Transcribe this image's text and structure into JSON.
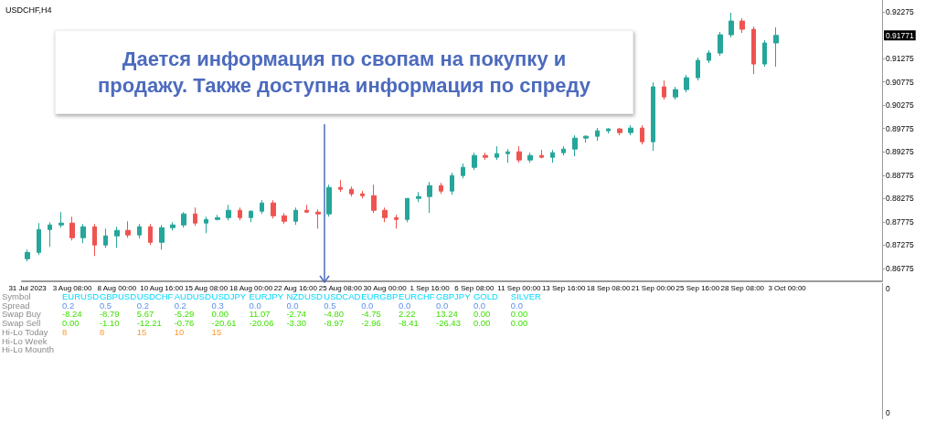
{
  "chart_data": [
    {
      "type": "candlestick",
      "title": "USDCHF,H4",
      "annotations": [
        "Дается информация по свопам на покупку и продажу. Также доступна информация по спреду",
        {
          "text": "0.91771",
          "y": 0.91771
        }
      ],
      "categories": [
        "31 Jul 2023",
        null,
        null,
        null,
        "3 Aug 08:00",
        null,
        null,
        null,
        "8 Aug 00:00",
        null,
        null,
        null,
        "10 Aug 16:00",
        null,
        null,
        null,
        "15 Aug 08:00",
        null,
        null,
        null,
        "18 Aug 00:00",
        null,
        null,
        null,
        "22 Aug 16:00",
        null,
        null,
        null,
        "25 Aug 08:00",
        null,
        null,
        null,
        "30 Aug 00:00",
        null,
        null,
        null,
        "1 Sep 16:00",
        null,
        null,
        null,
        "6 Sep 08:00",
        null,
        null,
        null,
        "11 Sep 00:00",
        null,
        null,
        null,
        "13 Sep 16:00",
        null,
        null,
        null,
        "18 Sep 08:00",
        null,
        null,
        null,
        "21 Sep 00:00",
        null,
        null,
        null,
        "25 Sep 16:00",
        null,
        null,
        null,
        "28 Sep 08:00",
        null,
        null,
        null,
        "3 Oct 00:00",
        null,
        null,
        null,
        null,
        null,
        null,
        null,
        null
      ],
      "ohlc": [
        [
          0.86983,
          0.87179,
          0.86924,
          0.8712
        ],
        [
          0.8712,
          0.87748,
          0.87062,
          0.8761
        ],
        [
          0.8761,
          0.87767,
          0.87238,
          0.87708
        ],
        [
          0.87708,
          0.87983,
          0.8765,
          0.87748
        ],
        [
          0.87748,
          0.87885,
          0.87375,
          0.87434
        ],
        [
          0.87434,
          0.87728,
          0.87316,
          0.87669
        ],
        [
          0.87669,
          0.87728,
          0.87042,
          0.87277
        ],
        [
          0.87277,
          0.8763,
          0.87218,
          0.87473
        ],
        [
          0.87473,
          0.87669,
          0.87218,
          0.87591
        ],
        [
          0.87591,
          0.87787,
          0.87434,
          0.87493
        ],
        [
          0.87493,
          0.87728,
          0.87414,
          0.87669
        ],
        [
          0.87669,
          0.87728,
          0.87277,
          0.87336
        ],
        [
          0.87336,
          0.87708,
          0.87179,
          0.8765
        ],
        [
          0.8765,
          0.87767,
          0.87591,
          0.87708
        ],
        [
          0.87708,
          0.87983,
          0.8765,
          0.87944
        ],
        [
          0.87944,
          0.88081,
          0.87689,
          0.87748
        ],
        [
          0.87748,
          0.87885,
          0.87532,
          0.87826
        ],
        [
          0.87826,
          0.87924,
          0.87806,
          0.87865
        ],
        [
          0.87865,
          0.8814,
          0.87806,
          0.88022
        ],
        [
          0.88022,
          0.88081,
          0.87806,
          0.87865
        ],
        [
          0.87865,
          0.88022,
          0.87767,
          0.88002
        ],
        [
          0.88002,
          0.88238,
          0.87944,
          0.88179
        ],
        [
          0.88179,
          0.88238,
          0.87846,
          0.87904
        ],
        [
          0.87904,
          0.87963,
          0.87728,
          0.87787
        ],
        [
          0.87787,
          0.88081,
          0.87708,
          0.88022
        ],
        [
          0.88022,
          0.8814,
          0.87963,
          0.87983
        ],
        [
          0.87983,
          0.88042,
          0.8763,
          0.87944
        ],
        [
          0.87944,
          0.88571,
          0.87885,
          0.88512
        ],
        [
          0.88512,
          0.88669,
          0.88414,
          0.88473
        ],
        [
          0.88473,
          0.88532,
          0.88316,
          0.88375
        ],
        [
          0.88375,
          0.88434,
          0.88277,
          0.88336
        ],
        [
          0.88336,
          0.88571,
          0.87963,
          0.88022
        ],
        [
          0.88022,
          0.88081,
          0.87767,
          0.87865
        ],
        [
          0.87865,
          0.87924,
          0.8763,
          0.87826
        ],
        [
          0.87826,
          0.88277,
          0.87767,
          0.88277
        ],
        [
          0.88277,
          0.88414,
          0.88198,
          0.88317
        ],
        [
          0.88317,
          0.8863,
          0.87963,
          0.88551
        ],
        [
          0.88551,
          0.8861,
          0.88375,
          0.88434
        ],
        [
          0.88434,
          0.88826,
          0.88355,
          0.88767
        ],
        [
          0.88767,
          0.89022,
          0.88708,
          0.88943
        ],
        [
          0.88943,
          0.89257,
          0.88884,
          0.89198
        ],
        [
          0.89198,
          0.89257,
          0.891,
          0.89159
        ],
        [
          0.89159,
          0.89394,
          0.891,
          0.89237
        ],
        [
          0.89237,
          0.89335,
          0.89041,
          0.89276
        ],
        [
          0.89276,
          0.89394,
          0.89041,
          0.891
        ],
        [
          0.891,
          0.89257,
          0.89041,
          0.89198
        ],
        [
          0.89198,
          0.89316,
          0.89139,
          0.89158
        ],
        [
          0.89158,
          0.89316,
          0.89041,
          0.89257
        ],
        [
          0.89257,
          0.89394,
          0.89198,
          0.89335
        ],
        [
          0.89335,
          0.89629,
          0.89178,
          0.8957
        ],
        [
          0.8957,
          0.89629,
          0.89472,
          0.8961
        ],
        [
          0.8961,
          0.89786,
          0.89512,
          0.89727
        ],
        [
          0.89727,
          0.89786,
          0.89668,
          0.89767
        ],
        [
          0.89767,
          0.89786,
          0.89629,
          0.89688
        ],
        [
          0.89688,
          0.89845,
          0.89629,
          0.89786
        ],
        [
          0.89786,
          0.89845,
          0.89433,
          0.89492
        ],
        [
          0.89492,
          0.90766,
          0.89296,
          0.90668
        ],
        [
          0.90668,
          0.90805,
          0.90394,
          0.90452
        ],
        [
          0.90452,
          0.90668,
          0.90394,
          0.90609
        ],
        [
          0.90609,
          0.90923,
          0.9055,
          0.90864
        ],
        [
          0.90864,
          0.91295,
          0.90805,
          0.91236
        ],
        [
          0.91236,
          0.91452,
          0.91178,
          0.91393
        ],
        [
          0.91393,
          0.91844,
          0.91334,
          0.91785
        ],
        [
          0.91785,
          0.92256,
          0.91726,
          0.92079
        ],
        [
          0.92079,
          0.92138,
          0.91824,
          0.91903
        ],
        [
          0.91903,
          0.91962,
          0.90942,
          0.91158
        ],
        [
          0.91158,
          0.91668,
          0.91099,
          0.91609
        ],
        [
          0.91609,
          0.91942,
          0.91099,
          0.91771
        ],
        null,
        null,
        null,
        null,
        null,
        null,
        null,
        null,
        null
      ],
      "ylim": [
        0.865,
        0.9253
      ],
      "yticks": [
        0.86775,
        0.87275,
        0.87775,
        0.88275,
        0.88775,
        0.89275,
        0.89775,
        0.90275,
        0.90775,
        0.91275,
        0.92275
      ]
    },
    {
      "type": "other",
      "xlabel": "Symbol",
      "annotations": [
        "0",
        "0"
      ],
      "categories": [
        "EURUSD",
        "GBPUSD",
        "USDCHF",
        "AUDUSD",
        "USDJPY",
        "EURJPY",
        "NZDUSD",
        "USDCAD",
        "EURGBP",
        "EURCHF",
        "GBPJPY",
        "GOLD",
        "SILVER"
      ],
      "y_categories": [
        "Spread",
        "Swap Buy",
        "Swap Sell",
        "Hi-Lo Today",
        "Hi-Lo Week",
        "Hi-Lo Mounth"
      ],
      "colors": [
        "#00d7ff",
        "#5b8fe8",
        "#3ee000",
        "#3ee000",
        "#ff9a33"
      ],
      "cell_labels": [
        [
          "0.2",
          "0.5",
          "0.2",
          "0.2",
          "0.3",
          "0.0",
          "0.0",
          "0.5",
          "0.0",
          "0.0",
          "0.0",
          "0.0",
          "0.0"
        ],
        [
          "-8.24",
          "-8.79",
          "5.67",
          "-5.29",
          "0.00",
          "11.07",
          "-2.74",
          "-4.80",
          "-4.75",
          "2.22",
          "13.24",
          "0.00",
          "0.00"
        ],
        [
          "0.00",
          "-1.10",
          "-12.21",
          "-0.76",
          "-20.61",
          "-20.06",
          "-3.30",
          "-8.97",
          "-2.96",
          "-8.41",
          "-26.43",
          "0.00",
          "0.00"
        ],
        [
          "8",
          "8",
          "15",
          "10",
          "15",
          null,
          null,
          null,
          null,
          null,
          null,
          null,
          null
        ],
        [
          null,
          null,
          null,
          null,
          null,
          null,
          null,
          null,
          null,
          null,
          null,
          null,
          null
        ],
        [
          null,
          null,
          null,
          null,
          null,
          null,
          null,
          null,
          null,
          null,
          null,
          null,
          null
        ]
      ]
    }
  ]
}
